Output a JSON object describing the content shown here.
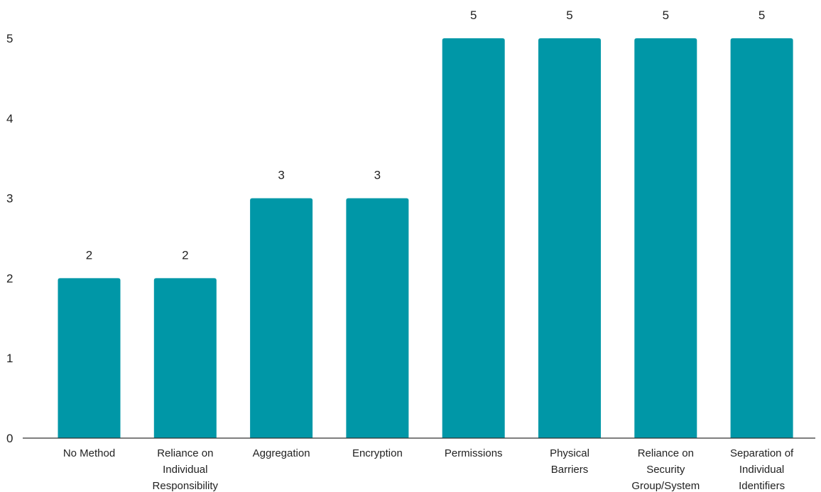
{
  "chart_data": {
    "type": "bar",
    "title": "",
    "xlabel": "",
    "ylabel": "",
    "categories": [
      "No Method",
      "Reliance on Individual Responsibility",
      "Aggregation",
      "Encryption",
      "Permissions",
      "Physical Barriers",
      "Reliance on Security Group/System",
      "Separation of Individual Identifiers"
    ],
    "category_lines": [
      [
        "No Method"
      ],
      [
        "Reliance on",
        "Individual",
        "Responsibility"
      ],
      [
        "Aggregation"
      ],
      [
        "Encryption"
      ],
      [
        "Permissions"
      ],
      [
        "Physical",
        "Barriers"
      ],
      [
        "Reliance on",
        "Security",
        "Group/System"
      ],
      [
        "Separation of",
        "Individual",
        "Identifiers"
      ]
    ],
    "values": [
      2,
      2,
      3,
      3,
      5,
      5,
      5,
      5
    ],
    "yticks": [
      0,
      1,
      2,
      3,
      4,
      5
    ],
    "ylim": [
      0,
      5
    ],
    "grid": false,
    "legend": "none",
    "bar_color": "#0097a7",
    "show_data_labels": true
  }
}
